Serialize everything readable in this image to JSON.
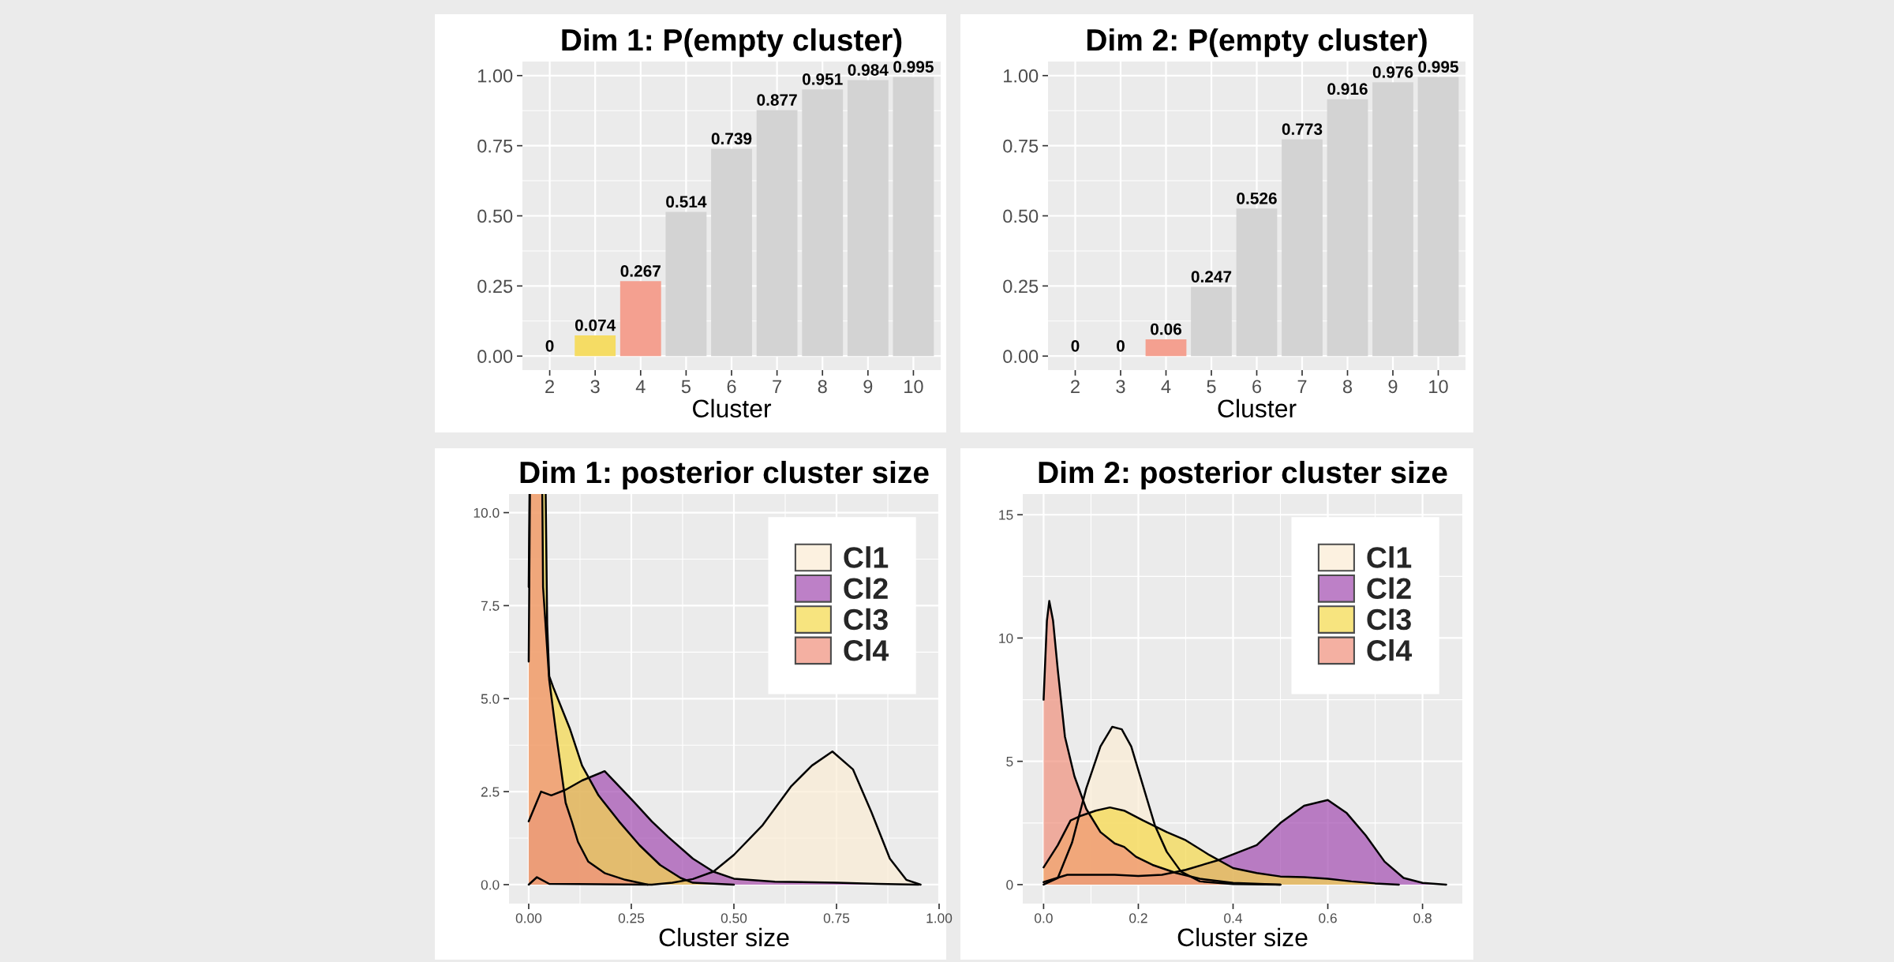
{
  "chart_data": [
    {
      "type": "bar",
      "title": "Dim 1: P(empty cluster)",
      "xlabel": "Cluster",
      "categories": [
        "2",
        "3",
        "4",
        "5",
        "6",
        "7",
        "8",
        "9",
        "10"
      ],
      "values": [
        0,
        0.074,
        0.267,
        0.514,
        0.739,
        0.877,
        0.951,
        0.984,
        0.995
      ],
      "colors": [
        null,
        "#f5dc64",
        "#f4a090",
        "#d3d3d3",
        "#d3d3d3",
        "#d3d3d3",
        "#d3d3d3",
        "#d3d3d3",
        "#d3d3d3"
      ],
      "ylim": [
        -0.05,
        1.05
      ],
      "yticks": [
        {
          "value": 0,
          "label": "0.00"
        },
        {
          "value": 0.25,
          "label": "0.25"
        },
        {
          "value": 0.5,
          "label": "0.50"
        },
        {
          "value": 0.75,
          "label": "0.75"
        },
        {
          "value": 1,
          "label": "1.00"
        }
      ],
      "grid": true,
      "data_labels": true
    },
    {
      "type": "bar",
      "title": "Dim 2: P(empty cluster)",
      "xlabel": "Cluster",
      "categories": [
        "2",
        "3",
        "4",
        "5",
        "6",
        "7",
        "8",
        "9",
        "10"
      ],
      "values": [
        0,
        0,
        0.06,
        0.247,
        0.526,
        0.773,
        0.916,
        0.976,
        0.995
      ],
      "colors": [
        null,
        null,
        "#f4a090",
        "#d3d3d3",
        "#d3d3d3",
        "#d3d3d3",
        "#d3d3d3",
        "#d3d3d3",
        "#d3d3d3"
      ],
      "ylim": [
        -0.05,
        1.05
      ],
      "yticks": [
        {
          "value": 0,
          "label": "0.00"
        },
        {
          "value": 0.25,
          "label": "0.25"
        },
        {
          "value": 0.5,
          "label": "0.50"
        },
        {
          "value": 0.75,
          "label": "0.75"
        },
        {
          "value": 1,
          "label": "1.00"
        }
      ],
      "grid": true,
      "data_labels": true
    },
    {
      "type": "area",
      "title": "Dim 1: posterior cluster size",
      "xlabel": "Cluster size",
      "series": [
        {
          "name": "Cl1",
          "color": "#fbecd4",
          "x": [
            0,
            0.02,
            0.05,
            0.3,
            0.35,
            0.4,
            0.45,
            0.5,
            0.57,
            0.64,
            0.69,
            0.74,
            0.79,
            0.835,
            0.88,
            0.92,
            0.955
          ],
          "values": [
            0,
            0.2,
            0.02,
            0,
            0.05,
            0.15,
            0.35,
            0.8,
            1.6,
            2.65,
            3.2,
            3.58,
            3.1,
            1.95,
            0.7,
            0.13,
            0
          ]
        },
        {
          "name": "Cl2",
          "color": "#a24bb0",
          "x": [
            0,
            0.03,
            0.055,
            0.09,
            0.13,
            0.185,
            0.25,
            0.3,
            0.34,
            0.4,
            0.45,
            0.5,
            0.6,
            0.75,
            0.85,
            0.95
          ],
          "values": [
            1.7,
            2.5,
            2.4,
            2.55,
            2.8,
            3.05,
            2.3,
            1.7,
            1.28,
            0.7,
            0.35,
            0.16,
            0.08,
            0.05,
            0.02,
            0
          ]
        },
        {
          "name": "Cl3",
          "color": "#f5d94a",
          "x": [
            0,
            0.01,
            0.03,
            0.045,
            0.05,
            0.06,
            0.1,
            0.13,
            0.17,
            0.22,
            0.27,
            0.32,
            0.37,
            0.4,
            0.5
          ],
          "values": [
            6,
            null,
            null,
            7,
            5.6,
            5.3,
            4.2,
            3.2,
            2.4,
            1.7,
            1.06,
            0.53,
            0.18,
            0.05,
            0
          ]
        },
        {
          "name": "Cl4",
          "color": "#f0907c",
          "x": [
            0,
            0.01,
            0.025,
            0.035,
            0.05,
            0.07,
            0.09,
            0.105,
            0.12,
            0.145,
            0.185,
            0.235,
            0.29
          ],
          "values": [
            8,
            null,
            null,
            8,
            5.5,
            3.8,
            2.2,
            1.7,
            1.15,
            0.62,
            0.31,
            0.13,
            0
          ]
        }
      ],
      "xlim": [
        -0.048,
        1.0
      ],
      "xticks": [
        {
          "value": 0,
          "label": "0.00"
        },
        {
          "value": 0.25,
          "label": "0.25"
        },
        {
          "value": 0.5,
          "label": "0.50"
        },
        {
          "value": 0.75,
          "label": "0.75"
        },
        {
          "value": 1,
          "label": "1.00"
        }
      ],
      "ylim": [
        -0.51,
        10.5
      ],
      "yticks": [
        {
          "value": 0,
          "label": "0.0"
        },
        {
          "value": 2.5,
          "label": "2.5"
        },
        {
          "value": 5,
          "label": "5.0"
        },
        {
          "value": 7.5,
          "label": "7.5"
        },
        {
          "value": 10,
          "label": "10.0"
        }
      ],
      "grid": true,
      "legend": "top right"
    },
    {
      "type": "area",
      "title": "Dim 2: posterior cluster size",
      "xlabel": "Cluster size",
      "series": [
        {
          "name": "Cl1",
          "color": "#fbecd4",
          "x": [
            0,
            0.03,
            0.06,
            0.09,
            0.12,
            0.145,
            0.165,
            0.185,
            0.21,
            0.235,
            0.26,
            0.29,
            0.33,
            0.4,
            0.5
          ],
          "values": [
            0,
            0.27,
            1.7,
            3.9,
            5.6,
            6.4,
            6.3,
            5.6,
            4.0,
            2.4,
            1.33,
            0.53,
            0.13,
            0.02,
            0
          ]
        },
        {
          "name": "Cl2",
          "color": "#a24bb0",
          "x": [
            0,
            0.05,
            0.15,
            0.2,
            0.25,
            0.3,
            0.37,
            0.45,
            0.5,
            0.55,
            0.6,
            0.64,
            0.68,
            0.72,
            0.76,
            0.8,
            0.85
          ],
          "values": [
            0.1,
            0.4,
            0.4,
            0.35,
            0.4,
            0.6,
            1.0,
            1.6,
            2.5,
            3.2,
            3.43,
            2.9,
            2.0,
            0.93,
            0.27,
            0.07,
            0
          ]
        },
        {
          "name": "Cl3",
          "color": "#f5d94a",
          "x": [
            0,
            0.03,
            0.057,
            0.08,
            0.11,
            0.14,
            0.17,
            0.21,
            0.26,
            0.3,
            0.35,
            0.4,
            0.45,
            0.5,
            0.55,
            0.6,
            0.65,
            0.7,
            0.75
          ],
          "values": [
            0.7,
            1.6,
            2.6,
            2.8,
            3.0,
            3.13,
            3.0,
            2.6,
            2.13,
            1.8,
            1.2,
            0.67,
            0.47,
            0.33,
            0.3,
            0.24,
            0.13,
            0.05,
            0
          ]
        },
        {
          "name": "Cl4",
          "color": "#f0907c",
          "x": [
            0,
            0.007,
            0.012,
            0.02,
            0.03,
            0.045,
            0.065,
            0.09,
            0.12,
            0.15,
            0.17,
            0.195,
            0.23,
            0.28,
            0.33,
            0.4,
            0.5
          ],
          "values": [
            7.5,
            10.7,
            11.5,
            10.7,
            8.7,
            6.0,
            4.4,
            3.07,
            2.13,
            1.67,
            1.53,
            1.13,
            0.8,
            0.47,
            0.24,
            0.07,
            0
          ]
        }
      ],
      "xlim": [
        -0.044,
        0.884
      ],
      "xticks": [
        {
          "value": 0,
          "label": "0.0"
        },
        {
          "value": 0.2,
          "label": "0.2"
        },
        {
          "value": 0.4,
          "label": "0.4"
        },
        {
          "value": 0.6,
          "label": "0.6"
        },
        {
          "value": 0.8,
          "label": "0.8"
        }
      ],
      "ylim": [
        -0.77,
        15.84
      ],
      "yticks": [
        0,
        5,
        10,
        15
      ],
      "grid": true,
      "legend": "top right"
    }
  ]
}
